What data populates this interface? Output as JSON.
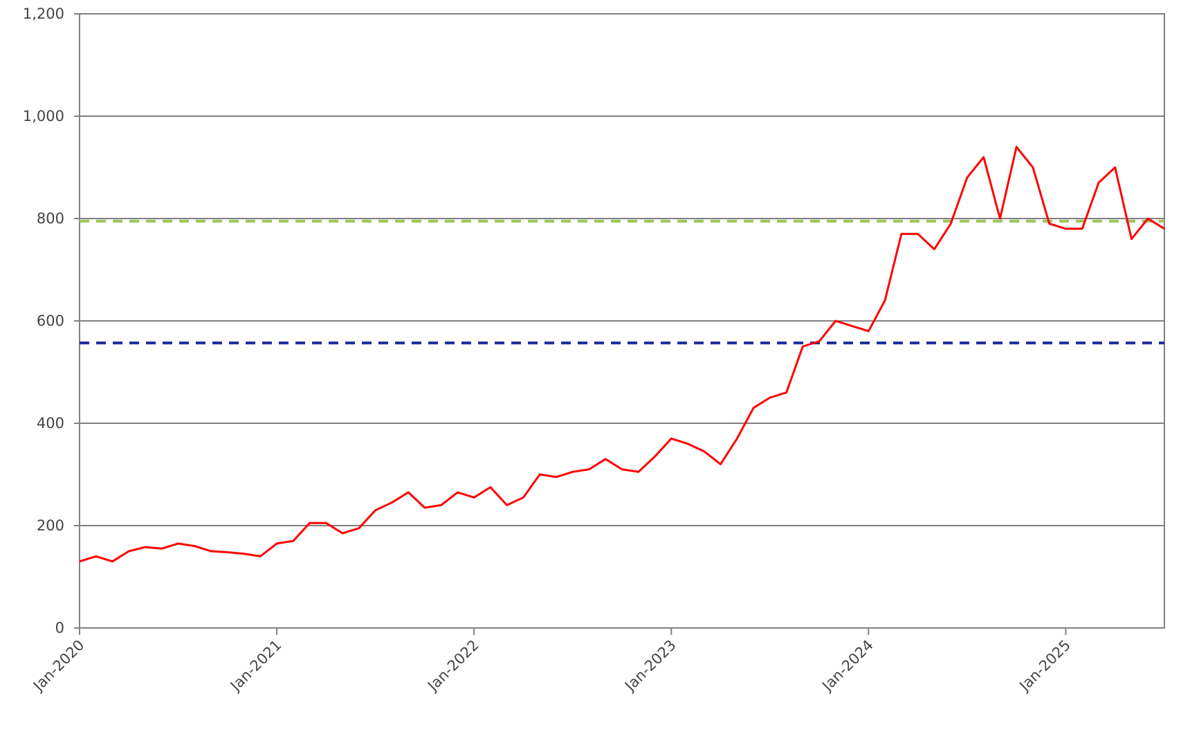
{
  "chart_data": {
    "type": "line",
    "x": [
      "2020-01",
      "2020-02",
      "2020-03",
      "2020-04",
      "2020-05",
      "2020-06",
      "2020-07",
      "2020-08",
      "2020-09",
      "2020-10",
      "2020-11",
      "2020-12",
      "2021-01",
      "2021-02",
      "2021-03",
      "2021-04",
      "2021-05",
      "2021-06",
      "2021-07",
      "2021-08",
      "2021-09",
      "2021-10",
      "2021-11",
      "2021-12",
      "2022-01",
      "2022-02",
      "2022-03",
      "2022-04",
      "2022-05",
      "2022-06",
      "2022-07",
      "2022-08",
      "2022-09",
      "2022-10",
      "2022-11",
      "2022-12",
      "2023-01",
      "2023-02",
      "2023-03",
      "2023-04",
      "2023-05",
      "2023-06",
      "2023-07",
      "2023-08",
      "2023-09",
      "2023-10",
      "2023-11",
      "2023-12",
      "2024-01",
      "2024-02",
      "2024-03",
      "2024-04",
      "2024-05",
      "2024-06",
      "2024-07",
      "2024-08",
      "2024-09",
      "2024-10",
      "2024-11",
      "2024-12",
      "2025-01",
      "2025-02",
      "2025-03",
      "2025-04",
      "2025-05",
      "2025-06",
      "2025-07"
    ],
    "series": [
      {
        "color": "#ff0000",
        "values": [
          130,
          140,
          130,
          150,
          158,
          155,
          165,
          160,
          150,
          148,
          145,
          140,
          165,
          170,
          205,
          205,
          185,
          195,
          230,
          245,
          265,
          235,
          240,
          265,
          255,
          275,
          240,
          255,
          300,
          295,
          305,
          310,
          330,
          310,
          305,
          335,
          370,
          360,
          345,
          320,
          370,
          430,
          450,
          460,
          550,
          560,
          600,
          590,
          580,
          640,
          770,
          770,
          740,
          790,
          880,
          920,
          800,
          940,
          900,
          790,
          780,
          780,
          870,
          900,
          760,
          800,
          780
        ]
      }
    ],
    "reference_lines": [
      {
        "value": 795,
        "color": "#9bc35a"
      },
      {
        "value": 557,
        "color": "#1f2a9c"
      }
    ],
    "xlim": [
      "2020-01",
      "2025-07"
    ],
    "xticks": [
      {
        "value": "2020-01",
        "label": "Jan-2020"
      },
      {
        "value": "2021-01",
        "label": "Jan-2021"
      },
      {
        "value": "2022-01",
        "label": "Jan-2022"
      },
      {
        "value": "2023-01",
        "label": "Jan-2023"
      },
      {
        "value": "2024-01",
        "label": "Jan-2024"
      },
      {
        "value": "2025-01",
        "label": "Jan-2025"
      }
    ],
    "ylim": [
      0,
      1200
    ],
    "yticks": [
      0,
      200,
      400,
      600,
      800,
      {
        "value": 1000,
        "label": "1,000"
      },
      {
        "value": 1200,
        "label": "1,200"
      }
    ],
    "grid": true
  }
}
